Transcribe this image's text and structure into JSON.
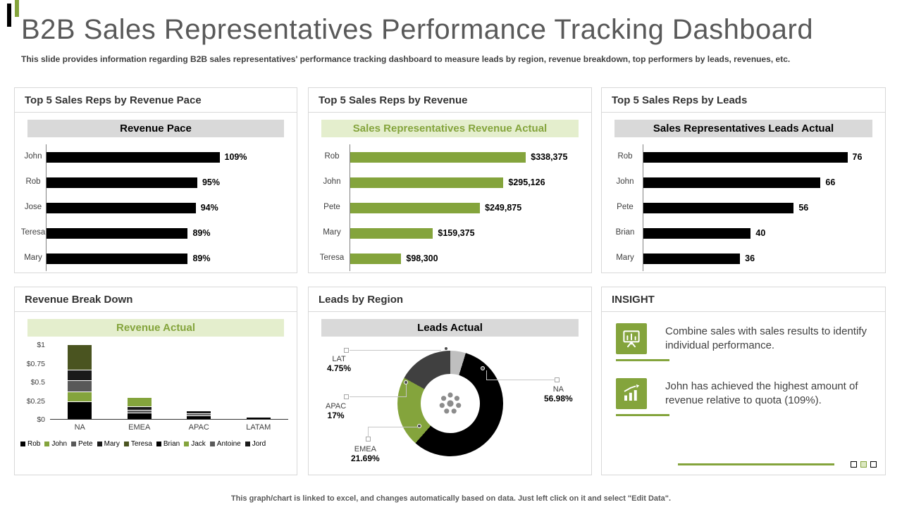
{
  "page": {
    "title": "B2B Sales Representatives Performance Tracking Dashboard",
    "subtitle": "This slide provides information regarding B2B sales representatives' performance tracking dashboard to measure leads by region, revenue breakdown, top performers by leads, revenues, etc.",
    "footer": "This graph/chart is linked to excel, and changes automatically based on data. Just left click on it and select \"Edit Data\"."
  },
  "colors": {
    "accent_green": "#84a43c",
    "light_green_banner": "#e4eecd",
    "gray_banner": "#d9d9d9",
    "bar_black": "#000000",
    "text_dark": "#404040",
    "text_gray": "#595959"
  },
  "panels": {
    "revenue_pace": {
      "title": "Top 5 Sales Reps by Revenue Pace"
    },
    "revenue": {
      "title": "Top 5 Sales Reps by Revenue"
    },
    "leads": {
      "title": "Top 5 Sales Reps by Leads"
    },
    "breakdown": {
      "title": "Revenue Break Down"
    },
    "region": {
      "title": "Leads by Region"
    },
    "insight": {
      "title": "INSIGHT",
      "items": [
        {
          "icon": "sales-board-icon",
          "text": "Combine sales with sales results to identify individual performance."
        },
        {
          "icon": "growth-chart-icon",
          "text": "John has achieved the highest amount of revenue relative to quota (109%)."
        }
      ]
    }
  },
  "chart_data": [
    {
      "id": "revenue-pace",
      "type": "bar",
      "orientation": "horizontal",
      "title": "Revenue Pace",
      "categories": [
        "John",
        "Rob",
        "Jose",
        "Teresa",
        "Mary"
      ],
      "values": [
        109,
        95,
        94,
        89,
        89
      ],
      "value_labels": [
        "109%",
        "95%",
        "94%",
        "89%",
        "89%"
      ],
      "bar_color": "#000000"
    },
    {
      "id": "revenue-actual",
      "type": "bar",
      "orientation": "horizontal",
      "title": "Sales Representatives Revenue Actual",
      "categories": [
        "Rob",
        "John",
        "Pete",
        "Mary",
        "Teresa"
      ],
      "values": [
        338375,
        295126,
        249875,
        159375,
        98300
      ],
      "value_labels": [
        "$338,375",
        "$295,126",
        "$249,875",
        "$159,375",
        "$98,300"
      ],
      "bar_color": "#84a43c"
    },
    {
      "id": "leads-actual",
      "type": "bar",
      "orientation": "horizontal",
      "title": "Sales Representatives Leads Actual",
      "categories": [
        "Rob",
        "John",
        "Pete",
        "Brian",
        "Mary"
      ],
      "values": [
        76,
        66,
        56,
        40,
        36
      ],
      "value_labels": [
        "76",
        "66",
        "56",
        "40",
        "36"
      ],
      "bar_color": "#000000"
    },
    {
      "id": "revenue-breakdown",
      "type": "bar",
      "subtype": "stacked-column",
      "title": "Revenue Actual",
      "categories": [
        "NA",
        "EMEA",
        "APAC",
        "LATAM"
      ],
      "ylim": [
        0,
        1
      ],
      "ytick_labels": [
        "$1",
        "$0.75",
        "$0.5",
        "$0.25",
        "$0"
      ],
      "totals_estimated": [
        0.99,
        0.28,
        0.1,
        0.02
      ],
      "stacks": [
        {
          "category": "NA",
          "segments": [
            {
              "color": "#000000",
              "value": 0.23
            },
            {
              "color": "#84a43c",
              "value": 0.13
            },
            {
              "color": "#595959",
              "value": 0.15
            },
            {
              "color": "#1a1a1a",
              "value": 0.14
            },
            {
              "color": "#4a5420",
              "value": 0.34
            }
          ]
        },
        {
          "category": "EMEA",
          "segments": [
            {
              "color": "#000000",
              "value": 0.08
            },
            {
              "color": "#595959",
              "value": 0.03
            },
            {
              "color": "#1a1a1a",
              "value": 0.05
            },
            {
              "color": "#84a43c",
              "value": 0.12
            }
          ]
        },
        {
          "category": "APAC",
          "segments": [
            {
              "color": "#000000",
              "value": 0.04
            },
            {
              "color": "#595959",
              "value": 0.03
            },
            {
              "color": "#1a1a1a",
              "value": 0.03
            }
          ]
        },
        {
          "category": "LATAM",
          "segments": [
            {
              "color": "#000000",
              "value": 0.02
            }
          ]
        }
      ],
      "legend": [
        {
          "name": "Rob",
          "color": "#000000"
        },
        {
          "name": "John",
          "color": "#84a43c"
        },
        {
          "name": "Pete",
          "color": "#595959"
        },
        {
          "name": "Mary",
          "color": "#1a1a1a"
        },
        {
          "name": "Teresa",
          "color": "#4a5420"
        },
        {
          "name": "Brian",
          "color": "#000000"
        },
        {
          "name": "Jack",
          "color": "#84a43c"
        },
        {
          "name": "Antoine",
          "color": "#595959"
        },
        {
          "name": "Jord",
          "color": "#1a1a1a"
        }
      ]
    },
    {
      "id": "leads-by-region",
      "type": "pie",
      "subtype": "donut",
      "title": "Leads Actual",
      "rotation": "clockwise-from-top",
      "segments": [
        {
          "name": "LAT",
          "value": 4.75,
          "label": "4.75%",
          "color": "#bfbfbf"
        },
        {
          "name": "NA",
          "value": 56.98,
          "label": "56.98%",
          "color": "#000000"
        },
        {
          "name": "EMEA",
          "value": 21.69,
          "label": "21.69%",
          "color": "#84a43c"
        },
        {
          "name": "APAC",
          "value": 17,
          "label": "17%",
          "color": "#404040"
        }
      ]
    }
  ]
}
